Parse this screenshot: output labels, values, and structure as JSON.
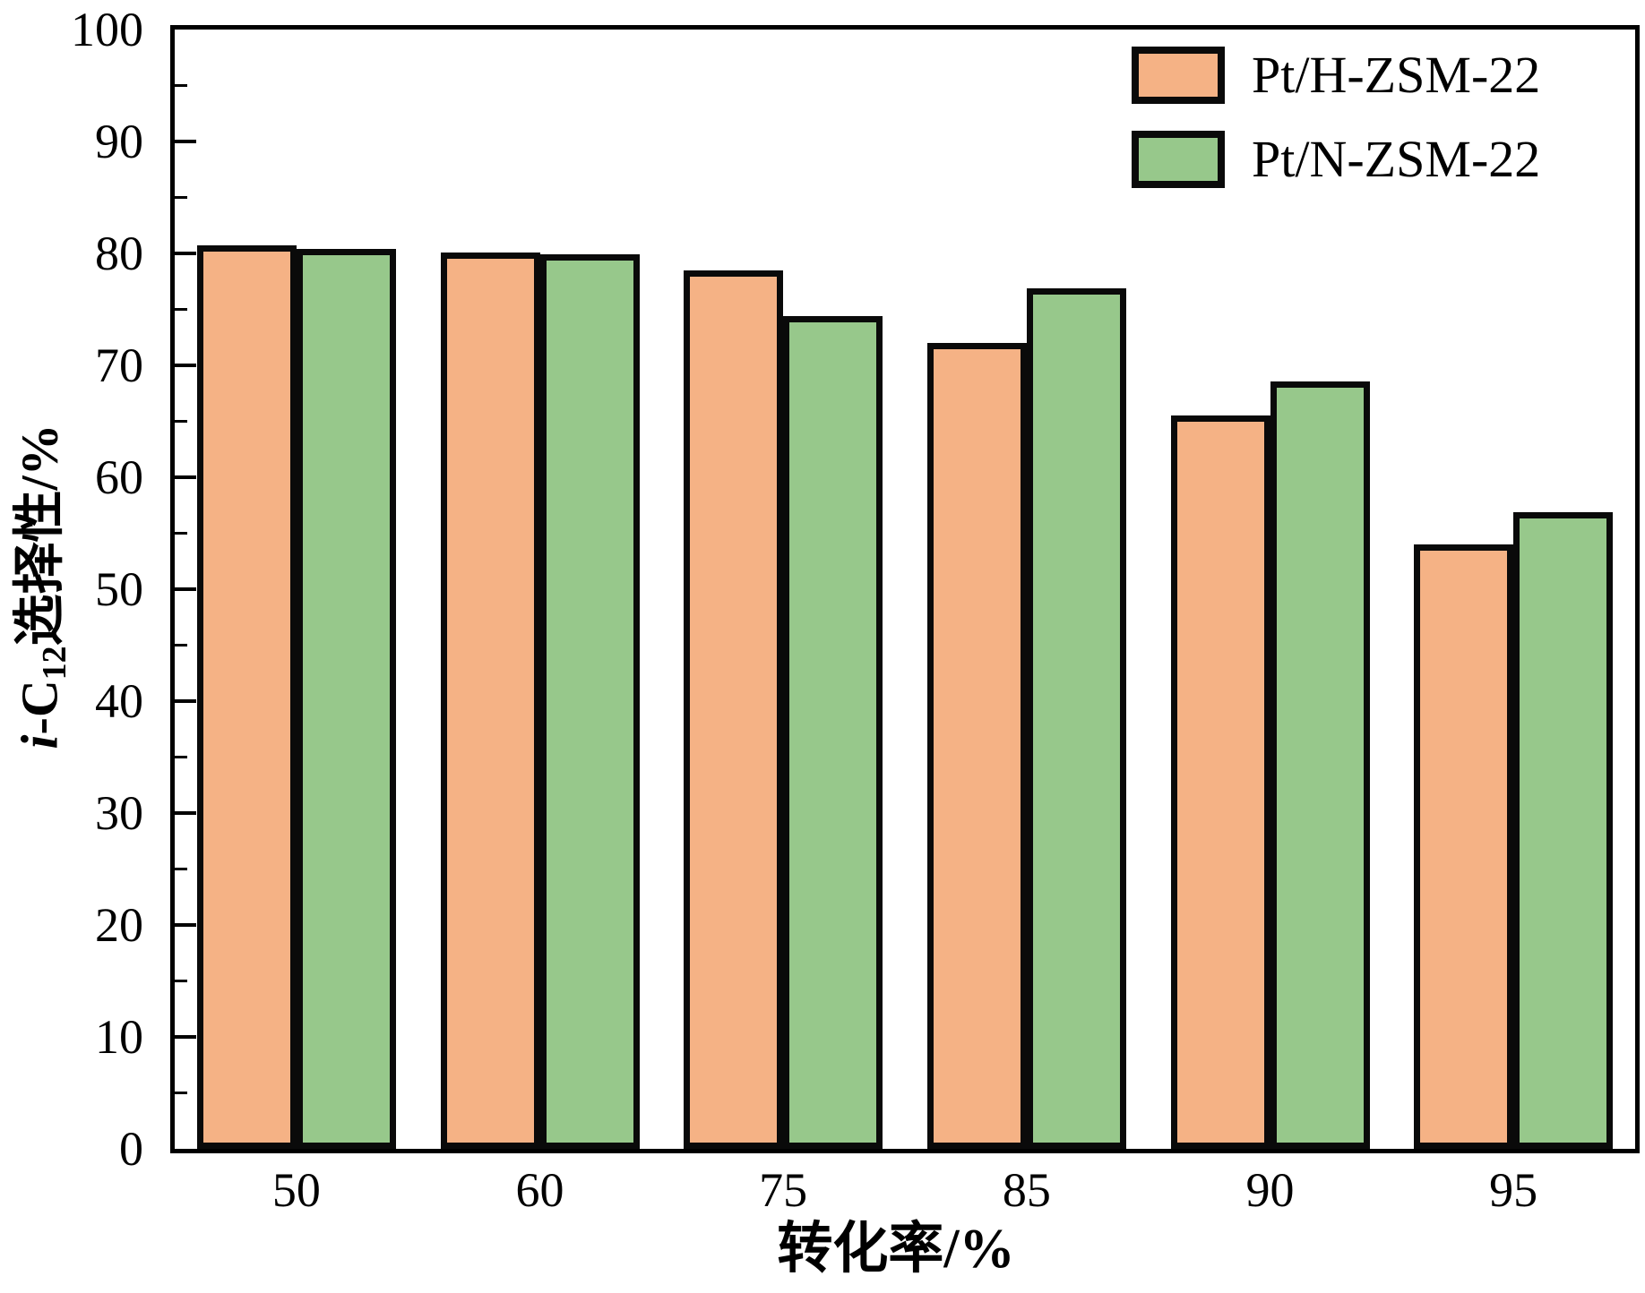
{
  "chart_data": {
    "type": "bar",
    "title": "",
    "xlabel": "转化率/%",
    "ylabel": "i-C12选择性/%",
    "categories": [
      "50",
      "60",
      "75",
      "85",
      "90",
      "95"
    ],
    "series": [
      {
        "name": "Pt/H-ZSM-22",
        "color": "#F5B285",
        "values": [
          80.7,
          80.1,
          78.5,
          72.0,
          65.5,
          54.0
        ]
      },
      {
        "name": "Pt/N-ZSM-22",
        "color": "#97C88B",
        "values": [
          80.4,
          79.9,
          74.4,
          76.9,
          68.6,
          56.9
        ]
      }
    ],
    "ylim": [
      0,
      100
    ],
    "y_major_step": 10,
    "y_minor_step": 5,
    "y_tick_labels": [
      "0",
      "10",
      "20",
      "30",
      "40",
      "50",
      "60",
      "70",
      "80",
      "90",
      "100"
    ],
    "grid": false,
    "legend_position": "top-right-inside",
    "frame": "full-box",
    "tick_direction": "in"
  },
  "ylabel_parts": {
    "italic": "i",
    "mid": "-C",
    "sub": "12",
    "rest": "选择性/%"
  },
  "legend": {
    "items": [
      {
        "label": "Pt/H-ZSM-22",
        "color": "#F5B285"
      },
      {
        "label": "Pt/N-ZSM-22",
        "color": "#97C88B"
      }
    ]
  },
  "colors": {
    "bar_border": "#0a0a0a",
    "axis": "#000000",
    "background": "#FFFFFF"
  }
}
